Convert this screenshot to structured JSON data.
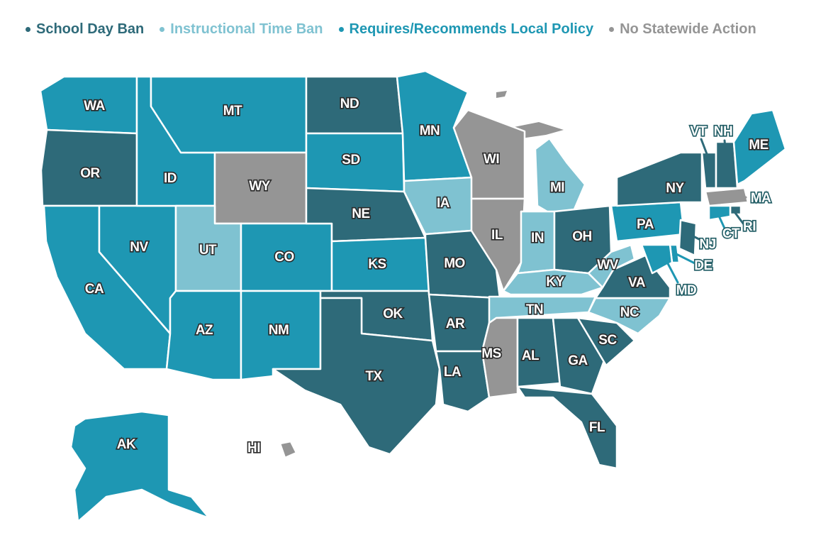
{
  "legend": [
    {
      "label": "School Day Ban",
      "color": "#2e6a79",
      "key": "ban"
    },
    {
      "label": "Instructional Time Ban",
      "color": "#7fc2d1",
      "key": "instr"
    },
    {
      "label": "Requires/Recommends Local Policy",
      "color": "#1e97b3",
      "key": "local"
    },
    {
      "label": "No Statewide Action",
      "color": "#959595",
      "key": "none"
    }
  ],
  "colors": {
    "ban": "#2e6a79",
    "instr": "#7fc2d1",
    "local": "#1e97b3",
    "none": "#959595"
  },
  "states": [
    {
      "abbr": "WA",
      "cat": "local"
    },
    {
      "abbr": "OR",
      "cat": "ban"
    },
    {
      "abbr": "CA",
      "cat": "local"
    },
    {
      "abbr": "NV",
      "cat": "local"
    },
    {
      "abbr": "ID",
      "cat": "local"
    },
    {
      "abbr": "MT",
      "cat": "local"
    },
    {
      "abbr": "WY",
      "cat": "none"
    },
    {
      "abbr": "UT",
      "cat": "instr"
    },
    {
      "abbr": "CO",
      "cat": "local"
    },
    {
      "abbr": "AZ",
      "cat": "local"
    },
    {
      "abbr": "NM",
      "cat": "local"
    },
    {
      "abbr": "ND",
      "cat": "ban"
    },
    {
      "abbr": "SD",
      "cat": "local"
    },
    {
      "abbr": "NE",
      "cat": "ban"
    },
    {
      "abbr": "KS",
      "cat": "local"
    },
    {
      "abbr": "OK",
      "cat": "ban"
    },
    {
      "abbr": "TX",
      "cat": "ban"
    },
    {
      "abbr": "MN",
      "cat": "local"
    },
    {
      "abbr": "IA",
      "cat": "instr"
    },
    {
      "abbr": "MO",
      "cat": "ban"
    },
    {
      "abbr": "AR",
      "cat": "ban"
    },
    {
      "abbr": "LA",
      "cat": "ban"
    },
    {
      "abbr": "WI",
      "cat": "none"
    },
    {
      "abbr": "IL",
      "cat": "none"
    },
    {
      "abbr": "MI",
      "cat": "instr"
    },
    {
      "abbr": "IN",
      "cat": "instr"
    },
    {
      "abbr": "OH",
      "cat": "ban"
    },
    {
      "abbr": "KY",
      "cat": "instr"
    },
    {
      "abbr": "TN",
      "cat": "instr"
    },
    {
      "abbr": "MS",
      "cat": "none"
    },
    {
      "abbr": "AL",
      "cat": "ban"
    },
    {
      "abbr": "GA",
      "cat": "ban"
    },
    {
      "abbr": "FL",
      "cat": "ban"
    },
    {
      "abbr": "SC",
      "cat": "ban"
    },
    {
      "abbr": "NC",
      "cat": "instr"
    },
    {
      "abbr": "VA",
      "cat": "ban"
    },
    {
      "abbr": "WV",
      "cat": "instr"
    },
    {
      "abbr": "PA",
      "cat": "local"
    },
    {
      "abbr": "NY",
      "cat": "ban"
    },
    {
      "abbr": "VT",
      "cat": "ban"
    },
    {
      "abbr": "NH",
      "cat": "ban"
    },
    {
      "abbr": "ME",
      "cat": "local"
    },
    {
      "abbr": "MA",
      "cat": "none"
    },
    {
      "abbr": "RI",
      "cat": "ban"
    },
    {
      "abbr": "CT",
      "cat": "local"
    },
    {
      "abbr": "NJ",
      "cat": "ban"
    },
    {
      "abbr": "DE",
      "cat": "local"
    },
    {
      "abbr": "MD",
      "cat": "local"
    },
    {
      "abbr": "AK",
      "cat": "local"
    },
    {
      "abbr": "HI",
      "cat": "none"
    }
  ]
}
